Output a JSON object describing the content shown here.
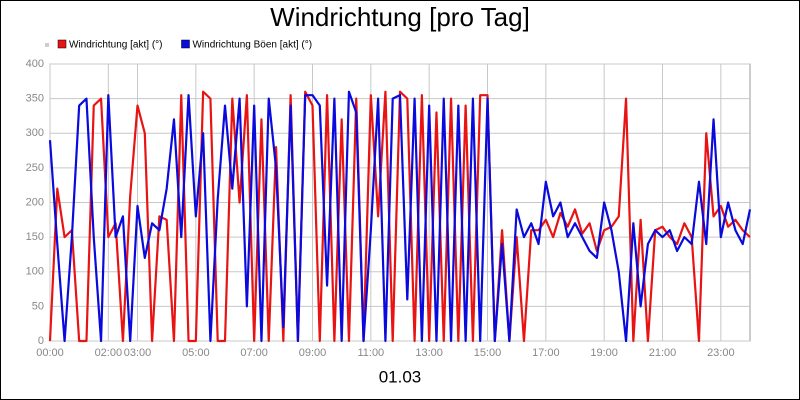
{
  "chart_data": {
    "type": "line",
    "title": "Windrichtung [pro Tag]",
    "x_label": "01.03",
    "x": [
      0,
      0.25,
      0.5,
      0.75,
      1,
      1.25,
      1.5,
      1.75,
      2,
      2.25,
      2.5,
      2.75,
      3,
      3.25,
      3.5,
      3.75,
      4,
      4.25,
      4.5,
      4.75,
      5,
      5.25,
      5.5,
      5.75,
      6,
      6.25,
      6.5,
      6.75,
      7,
      7.25,
      7.5,
      7.75,
      8,
      8.25,
      8.5,
      8.75,
      9,
      9.25,
      9.5,
      9.75,
      10,
      10.25,
      10.5,
      10.75,
      11,
      11.25,
      11.5,
      11.75,
      12,
      12.25,
      12.5,
      12.75,
      13,
      13.25,
      13.5,
      13.75,
      14,
      14.25,
      14.5,
      14.75,
      15,
      15.25,
      15.5,
      15.75,
      16,
      16.25,
      16.5,
      16.75,
      17,
      17.25,
      17.5,
      17.75,
      18,
      18.25,
      18.5,
      18.75,
      19,
      19.25,
      19.5,
      19.75,
      20,
      20.25,
      20.5,
      20.75,
      21,
      21.25,
      21.5,
      21.75,
      22,
      22.25,
      22.5,
      22.75,
      23,
      23.25,
      23.5,
      23.75,
      24
    ],
    "series": [
      {
        "name": "Windrichtung [akt] (°)",
        "color": "#e81414",
        "values": [
          0,
          220,
          150,
          160,
          0,
          0,
          340,
          350,
          150,
          170,
          0,
          210,
          340,
          300,
          0,
          180,
          175,
          0,
          355,
          0,
          0,
          360,
          350,
          0,
          0,
          350,
          200,
          355,
          0,
          320,
          0,
          280,
          0,
          355,
          0,
          360,
          340,
          0,
          355,
          0,
          320,
          0,
          350,
          0,
          355,
          180,
          360,
          0,
          360,
          350,
          0,
          355,
          0,
          330,
          0,
          350,
          0,
          340,
          0,
          355,
          355,
          0,
          160,
          0,
          150,
          0,
          160,
          160,
          175,
          150,
          185,
          165,
          190,
          155,
          170,
          130,
          160,
          165,
          180,
          350,
          0,
          175,
          0,
          160,
          165,
          150,
          140,
          170,
          150,
          0,
          300,
          180,
          195,
          165,
          175,
          160,
          150
        ]
      },
      {
        "name": "Windrichtung Böen [akt] (°)",
        "color": "#0a0adc",
        "values": [
          290,
          140,
          0,
          150,
          340,
          350,
          150,
          0,
          355,
          150,
          180,
          0,
          195,
          120,
          170,
          160,
          220,
          320,
          150,
          355,
          180,
          300,
          0,
          205,
          340,
          220,
          350,
          50,
          340,
          0,
          350,
          250,
          20,
          340,
          0,
          355,
          355,
          340,
          80,
          350,
          0,
          360,
          330,
          0,
          160,
          350,
          0,
          350,
          355,
          60,
          350,
          0,
          340,
          0,
          350,
          0,
          340,
          0,
          350,
          0,
          350,
          0,
          140,
          0,
          190,
          150,
          170,
          140,
          230,
          180,
          200,
          150,
          170,
          150,
          130,
          120,
          200,
          160,
          100,
          0,
          170,
          50,
          140,
          160,
          150,
          160,
          130,
          150,
          140,
          230,
          140,
          320,
          150,
          200,
          160,
          140,
          190
        ]
      }
    ],
    "xlim": [
      0,
      24
    ],
    "xticks": [
      {
        "value": 0,
        "label": "00:00"
      },
      {
        "value": 2,
        "label": "02:00"
      },
      {
        "value": 3,
        "label": "03:00"
      },
      {
        "value": 5,
        "label": "05:00"
      },
      {
        "value": 7,
        "label": "07:00"
      },
      {
        "value": 9,
        "label": "09:00"
      },
      {
        "value": 11,
        "label": "11:00"
      },
      {
        "value": 13,
        "label": "13:00"
      },
      {
        "value": 15,
        "label": "15:00"
      },
      {
        "value": 17,
        "label": "17:00"
      },
      {
        "value": 19,
        "label": "19:00"
      },
      {
        "value": 21,
        "label": "21:00"
      },
      {
        "value": 23,
        "label": "23:00"
      }
    ],
    "ylim": [
      0,
      400
    ],
    "yticks": [
      0,
      50,
      100,
      150,
      200,
      250,
      300,
      350,
      400
    ],
    "grid": true
  }
}
